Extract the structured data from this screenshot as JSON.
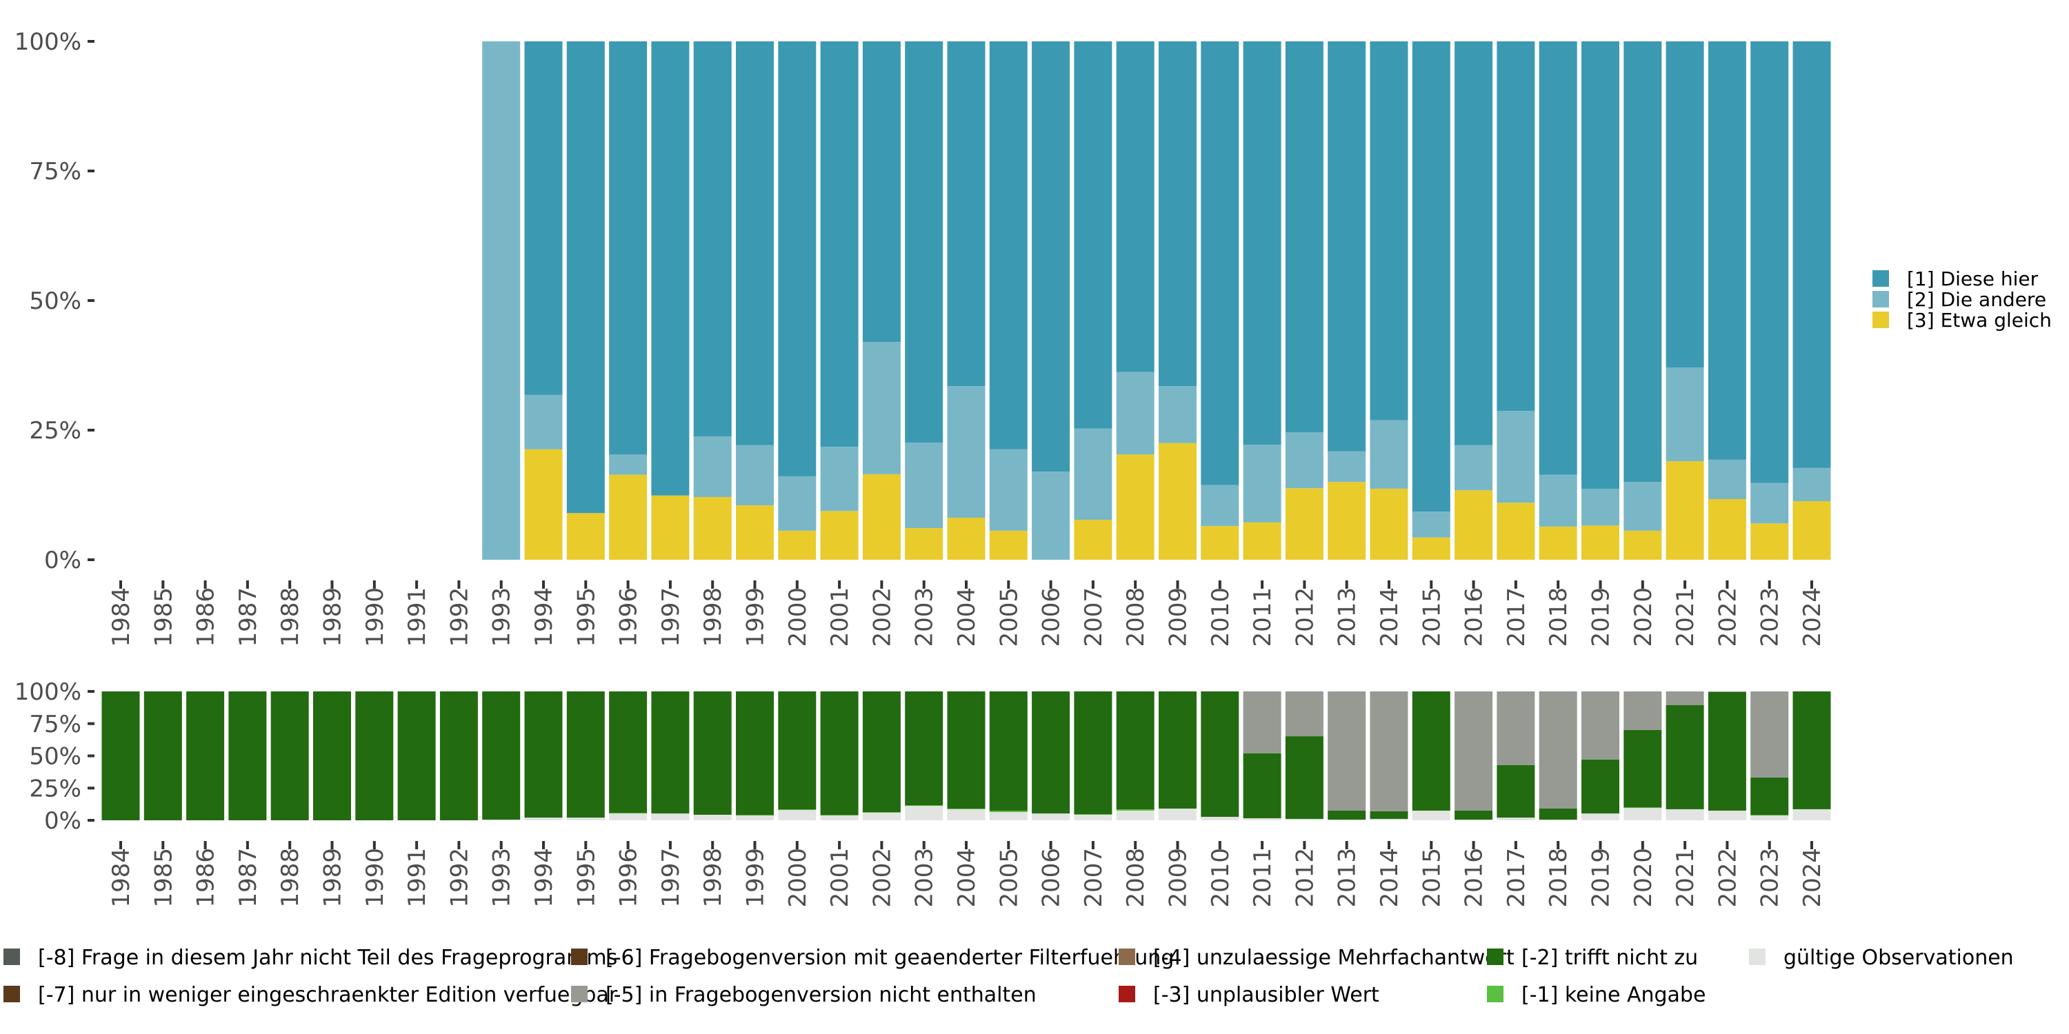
{
  "chart_data": [
    {
      "type": "bar",
      "stacked": "percent",
      "title": "",
      "xlabel": "",
      "ylabel": "",
      "ylim": [
        0,
        1
      ],
      "yticks": [
        "0%",
        "25%",
        "50%",
        "75%",
        "100%"
      ],
      "legend_position": "right",
      "categories": [
        "1984",
        "1985",
        "1986",
        "1987",
        "1988",
        "1989",
        "1990",
        "1991",
        "1992",
        "1993",
        "1994",
        "1995",
        "1996",
        "1997",
        "1998",
        "1999",
        "2000",
        "2001",
        "2002",
        "2003",
        "2004",
        "2005",
        "2006",
        "2007",
        "2008",
        "2009",
        "2010",
        "2011",
        "2012",
        "2013",
        "2014",
        "2015",
        "2016",
        "2017",
        "2018",
        "2019",
        "2020",
        "2021",
        "2022",
        "2023",
        "2024"
      ],
      "series": [
        {
          "name": "[3] Etwa gleich",
          "color": "#E9CB2C",
          "values": [
            null,
            null,
            null,
            null,
            null,
            null,
            null,
            null,
            null,
            0,
            0.213,
            0.09,
            0.164,
            0.124,
            0.121,
            0.105,
            0.056,
            0.094,
            0.165,
            0.061,
            0.081,
            0.056,
            0,
            0.077,
            0.203,
            0.225,
            0.065,
            0.072,
            0.138,
            0.15,
            0.137,
            0.043,
            0.134,
            0.11,
            0.064,
            0.066,
            0.056,
            0.19,
            0.117,
            0.07,
            0.113
          ]
        },
        {
          "name": "[2] Die andere",
          "color": "#7AB7C6",
          "values": [
            null,
            null,
            null,
            null,
            null,
            null,
            null,
            null,
            null,
            1.0,
            0.105,
            0,
            0.039,
            0,
            0.117,
            0.116,
            0.105,
            0.124,
            0.255,
            0.165,
            0.254,
            0.157,
            0.17,
            0.176,
            0.159,
            0.11,
            0.079,
            0.15,
            0.108,
            0.059,
            0.132,
            0.05,
            0.087,
            0.177,
            0.1,
            0.071,
            0.094,
            0.181,
            0.076,
            0.078,
            0.064
          ]
        },
        {
          "name": "[1] Diese hier",
          "color": "#3C99B2",
          "values": [
            null,
            null,
            null,
            null,
            null,
            null,
            null,
            null,
            null,
            0,
            0.682,
            0.91,
            0.797,
            0.876,
            0.762,
            0.779,
            0.839,
            0.782,
            0.58,
            0.774,
            0.665,
            0.787,
            0.83,
            0.747,
            0.638,
            0.665,
            0.856,
            0.778,
            0.754,
            0.791,
            0.731,
            0.907,
            0.779,
            0.713,
            0.836,
            0.863,
            0.85,
            0.629,
            0.807,
            0.852,
            0.823
          ]
        }
      ]
    },
    {
      "type": "bar",
      "stacked": "percent",
      "title": "",
      "xlabel": "",
      "ylabel": "",
      "ylim": [
        0,
        1
      ],
      "yticks": [
        "0%",
        "25%",
        "50%",
        "75%",
        "100%"
      ],
      "legend_position": "bottom",
      "categories": [
        "1984",
        "1985",
        "1986",
        "1987",
        "1988",
        "1989",
        "1990",
        "1991",
        "1992",
        "1993",
        "1994",
        "1995",
        "1996",
        "1997",
        "1998",
        "1999",
        "2000",
        "2001",
        "2002",
        "2003",
        "2004",
        "2005",
        "2006",
        "2007",
        "2008",
        "2009",
        "2010",
        "2011",
        "2012",
        "2013",
        "2014",
        "2015",
        "2016",
        "2017",
        "2018",
        "2019",
        "2020",
        "2021",
        "2022",
        "2023",
        "2024"
      ],
      "series": [
        {
          "name": "gültige Observationen",
          "color": "#E1E4E0",
          "values": [
            0,
            0,
            0,
            0,
            0,
            0,
            0,
            0,
            0,
            0.005,
            0.021,
            0.021,
            0.053,
            0.053,
            0.043,
            0.037,
            0.08,
            0.037,
            0.059,
            0.112,
            0.086,
            0.064,
            0.053,
            0.043,
            0.075,
            0.091,
            0.027,
            0.016,
            0.011,
            0.005,
            0.011,
            0.075,
            0.005,
            0.021,
            0.005,
            0.053,
            0.096,
            0.086,
            0.075,
            0.037,
            0.086
          ]
        },
        {
          "name": "[-1] keine Angabe",
          "color": "#5BBF41",
          "values": [
            0,
            0,
            0,
            0,
            0,
            0,
            0,
            0,
            0,
            0,
            0,
            0,
            0.004,
            0,
            0,
            0.004,
            0.004,
            0.004,
            0.004,
            0.004,
            0.004,
            0.01,
            0,
            0.004,
            0.01,
            0,
            0,
            0,
            0,
            0,
            0,
            0,
            0,
            0,
            0,
            0,
            0.004,
            0,
            0,
            0.004,
            0
          ]
        },
        {
          "name": "[-2] trifft nicht zu",
          "color": "#226B10",
          "values": [
            1,
            1,
            1,
            1,
            1,
            1,
            1,
            1,
            1,
            0.995,
            0.979,
            0.979,
            0.943,
            0.947,
            0.957,
            0.959,
            0.916,
            0.959,
            0.937,
            0.884,
            0.91,
            0.926,
            0.947,
            0.953,
            0.915,
            0.909,
            0.973,
            0.503,
            0.641,
            0.07,
            0.059,
            0.925,
            0.07,
            0.407,
            0.086,
            0.418,
            0.601,
            0.807,
            0.92,
            0.291,
            0.914
          ]
        },
        {
          "name": "[-5] in Fragebogenversion nicht enthalten",
          "color": "#969A93",
          "values": [
            0,
            0,
            0,
            0,
            0,
            0,
            0,
            0,
            0,
            0,
            0,
            0,
            0,
            0,
            0,
            0,
            0,
            0,
            0,
            0,
            0,
            0,
            0,
            0,
            0,
            0,
            0,
            0.481,
            0.348,
            0.925,
            0.93,
            0,
            0.925,
            0.572,
            0.909,
            0.529,
            0.299,
            0.107,
            0.005,
            0.668,
            0
          ]
        }
      ]
    }
  ],
  "top_legend": [
    {
      "label": "[1] Diese hier",
      "color": "#3C99B2"
    },
    {
      "label": "[2] Die andere",
      "color": "#7AB7C6"
    },
    {
      "label": "[3] Etwa gleich",
      "color": "#E9CB2C"
    }
  ],
  "bottom_legend": [
    {
      "label": "[-8] Frage in diesem Jahr nicht Teil des Frageprogramms",
      "color": "#545A55"
    },
    {
      "label": "[-7] nur in weniger eingeschraenkter Edition verfuegbar",
      "color": "#5A3A1A"
    },
    {
      "label": "[-6] Fragebogenversion mit geaenderter Filterfuehrung",
      "color": "#5A3A1A"
    },
    {
      "label": "[-5] in Fragebogenversion nicht enthalten",
      "color": "#969A93"
    },
    {
      "label": "[-4] unzulaessige Mehrfachantwort",
      "color": "#8C6B4C"
    },
    {
      "label": "[-3] unplausibler Wert",
      "color": "#A81A18"
    },
    {
      "label": "[-2] trifft nicht zu",
      "color": "#226B10"
    },
    {
      "label": "[-1] keine Angabe",
      "color": "#5BBF41"
    },
    {
      "label": "gültige Observationen",
      "color": "#E1E4E0"
    }
  ]
}
